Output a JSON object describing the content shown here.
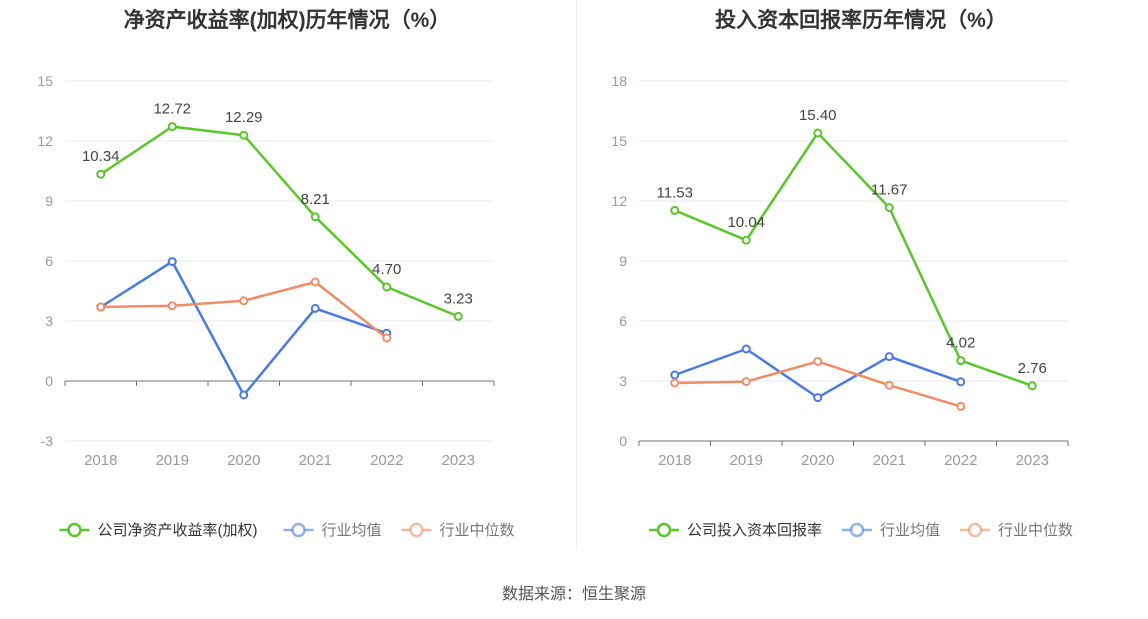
{
  "colors": {
    "company": "#5ac62a",
    "average": "#4a7be0",
    "median": "#f08c66",
    "grid": "#e6eaf2",
    "axis": "#6e7079",
    "label": "#999999"
  },
  "charts": [
    {
      "title": "净资产收益率(加权)历年情况（%）",
      "legend": [
        "公司净资产收益率(加权)",
        "行业均值",
        "行业中位数"
      ]
    },
    {
      "title": "投入资本回报率历年情况（%）",
      "legend": [
        "公司投入资本回报率",
        "行业均值",
        "行业中位数"
      ]
    }
  ],
  "chart_data": [
    {
      "type": "line",
      "title": "净资产收益率(加权)历年情况（%）",
      "categories": [
        "2018",
        "2019",
        "2020",
        "2021",
        "2022",
        "2023"
      ],
      "ylim": [
        -3,
        15
      ],
      "yticks": [
        -3,
        0,
        3,
        6,
        9,
        12,
        15
      ],
      "grid": true,
      "legend_position": "bottom",
      "series": [
        {
          "name": "公司净资产收益率(加权)",
          "values": [
            10.34,
            12.72,
            12.29,
            8.21,
            4.7,
            3.23
          ],
          "labels": [
            "10.34",
            "12.72",
            "12.29",
            "8.21",
            "4.70",
            "3.23"
          ]
        },
        {
          "name": "行业均值",
          "values": [
            3.7,
            5.97,
            -0.7,
            3.63,
            2.39,
            null
          ]
        },
        {
          "name": "行业中位数",
          "values": [
            3.7,
            3.76,
            4.01,
            4.95,
            2.15,
            null
          ]
        }
      ]
    },
    {
      "type": "line",
      "title": "投入资本回报率历年情况（%）",
      "categories": [
        "2018",
        "2019",
        "2020",
        "2021",
        "2022",
        "2023"
      ],
      "ylim": [
        0,
        18
      ],
      "yticks": [
        0,
        3,
        6,
        9,
        12,
        15,
        18
      ],
      "grid": true,
      "legend_position": "bottom",
      "series": [
        {
          "name": "公司投入资本回报率",
          "values": [
            11.53,
            10.04,
            15.4,
            11.67,
            4.02,
            2.76
          ],
          "labels": [
            "11.53",
            "10.04",
            "15.40",
            "11.67",
            "4.02",
            "2.76"
          ]
        },
        {
          "name": "行业均值",
          "values": [
            3.3,
            4.6,
            2.17,
            4.22,
            2.96,
            null
          ]
        },
        {
          "name": "行业中位数",
          "values": [
            2.9,
            2.97,
            3.98,
            2.79,
            1.73,
            null
          ]
        }
      ]
    }
  ],
  "source": "数据来源：恒生聚源"
}
